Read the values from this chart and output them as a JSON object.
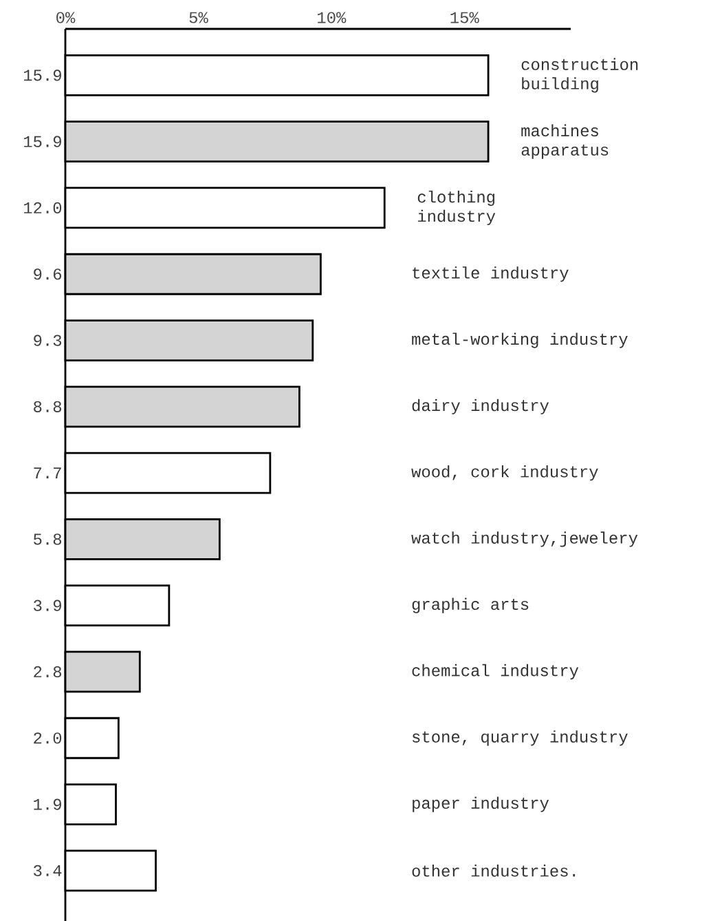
{
  "chart_data": {
    "type": "bar",
    "orientation": "horizontal",
    "categories": [
      "construction building",
      "machines apparatus",
      "clothing industry",
      "textile industry",
      "metal-working industry",
      "dairy industry",
      "wood, cork industry",
      "watch industry,jewelery",
      "graphic arts",
      "chemical industry",
      "stone, quarry industry",
      "paper industry",
      "other industries."
    ],
    "values": [
      15.9,
      15.9,
      12.0,
      9.6,
      9.3,
      8.8,
      7.7,
      5.8,
      3.9,
      2.8,
      2.0,
      1.9,
      3.4
    ],
    "colors": [
      "#ffffff",
      "#d4d4d4",
      "#ffffff",
      "#d4d4d4",
      "#d4d4d4",
      "#d4d4d4",
      "#ffffff",
      "#d4d4d4",
      "#ffffff",
      "#d4d4d4",
      "#ffffff",
      "#ffffff",
      "#ffffff"
    ],
    "xlim": [
      0,
      19
    ],
    "xticks": [
      {
        "value": 0,
        "label": "0%"
      },
      {
        "value": 5,
        "label": "5%"
      },
      {
        "value": 10,
        "label": "10%"
      },
      {
        "value": 15,
        "label": "15%"
      }
    ],
    "value_labels": [
      "15.9",
      "15.9",
      "12.0",
      "9.6",
      "9.3",
      "8.8",
      "7.7",
      "5.8",
      "3.9",
      "2.8",
      "2.0",
      "1.9",
      "3.4"
    ]
  }
}
